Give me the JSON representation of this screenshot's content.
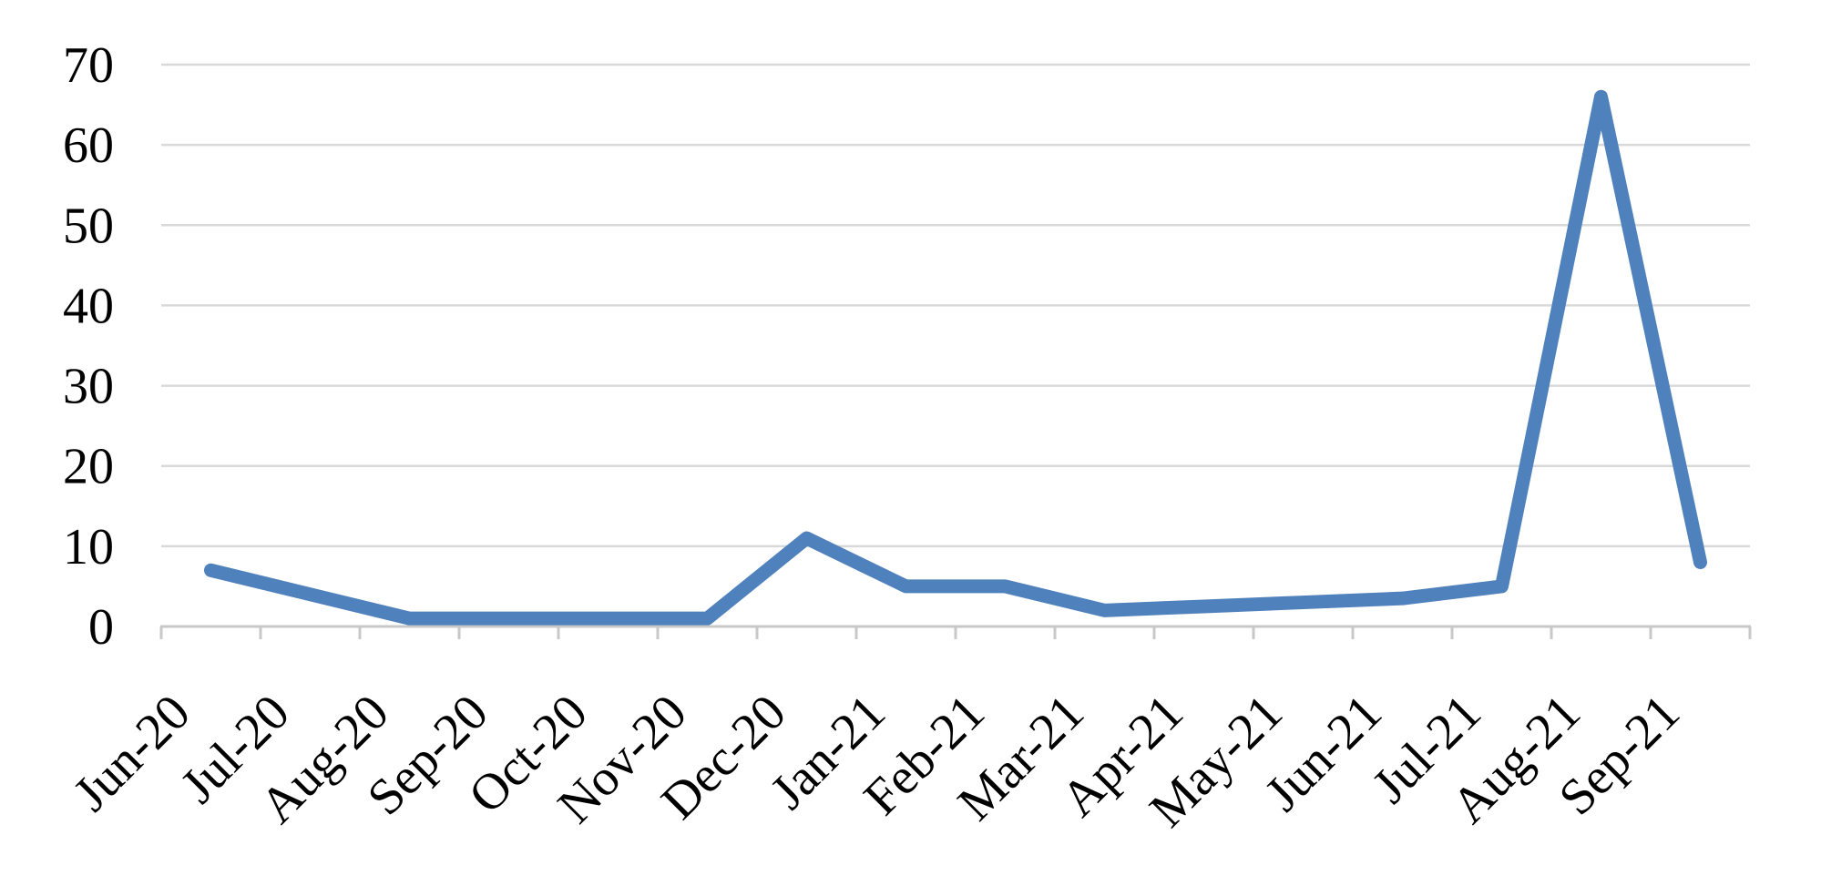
{
  "chart_data": {
    "type": "line",
    "categories": [
      "Jun-20",
      "Jul-20",
      "Aug-20",
      "Sep-20",
      "Oct-20",
      "Nov-20",
      "Dec-20",
      "Jan-21",
      "Feb-21",
      "Mar-21",
      "Apr-21",
      "May-21",
      "Jun-21",
      "Jul-21",
      "Aug-21",
      "Sep-21"
    ],
    "values": [
      7,
      4,
      1,
      1,
      1,
      1,
      11,
      5,
      5,
      2,
      2.5,
      3,
      3.5,
      5,
      66,
      8
    ],
    "title": "",
    "xlabel": "",
    "ylabel": "",
    "ylim": [
      0,
      70
    ],
    "ytick_step": 10,
    "ytick_labels": [
      "0",
      "10",
      "20",
      "30",
      "40",
      "50",
      "60",
      "70"
    ],
    "grid": true,
    "legend": false,
    "legend_position": "none",
    "line_color": "#4F81BD",
    "gridline_color": "#D9D9D9",
    "axis_color": "#C8C8C8",
    "text_color": "#000000",
    "background_color": "#FFFFFF"
  }
}
